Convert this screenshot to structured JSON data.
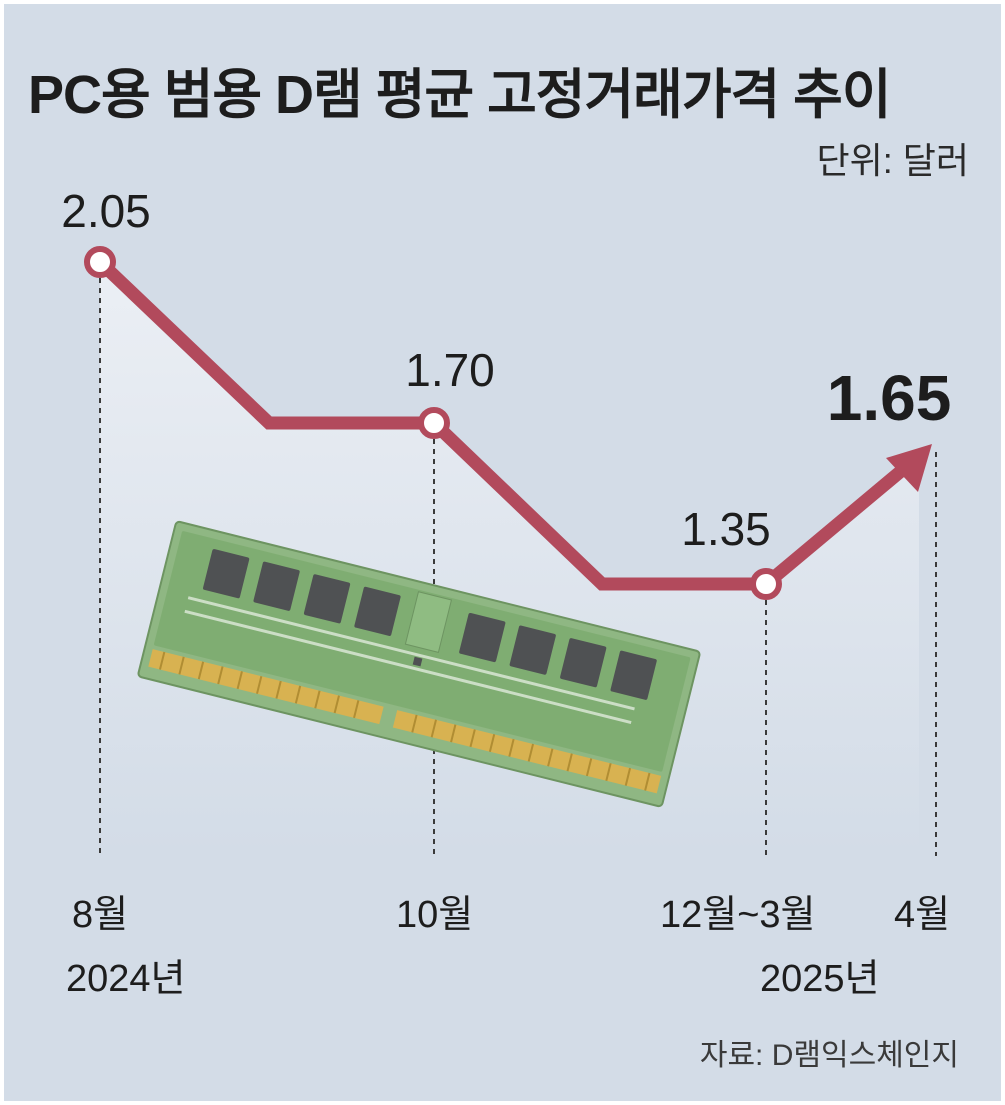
{
  "chart_data": {
    "type": "line",
    "title": "PC용 범용 D램 평균 고정거래가격 추이",
    "unit": "단위: 달러",
    "source": "자료: D램익스체인지",
    "series": [
      {
        "values": [
          2.05,
          1.7,
          1.7,
          1.35,
          1.35,
          1.65
        ],
        "labels": [
          "2.05",
          "",
          "1.70",
          "",
          "1.35",
          "1.65"
        ]
      }
    ],
    "x_labels": [
      "8월",
      "10월",
      "12월~3월",
      "4월"
    ],
    "year_labels": [
      "2024년",
      "2025년"
    ],
    "highlight": "1.65",
    "line_color": "#b24a5c",
    "background_color": "#d3dce7"
  }
}
